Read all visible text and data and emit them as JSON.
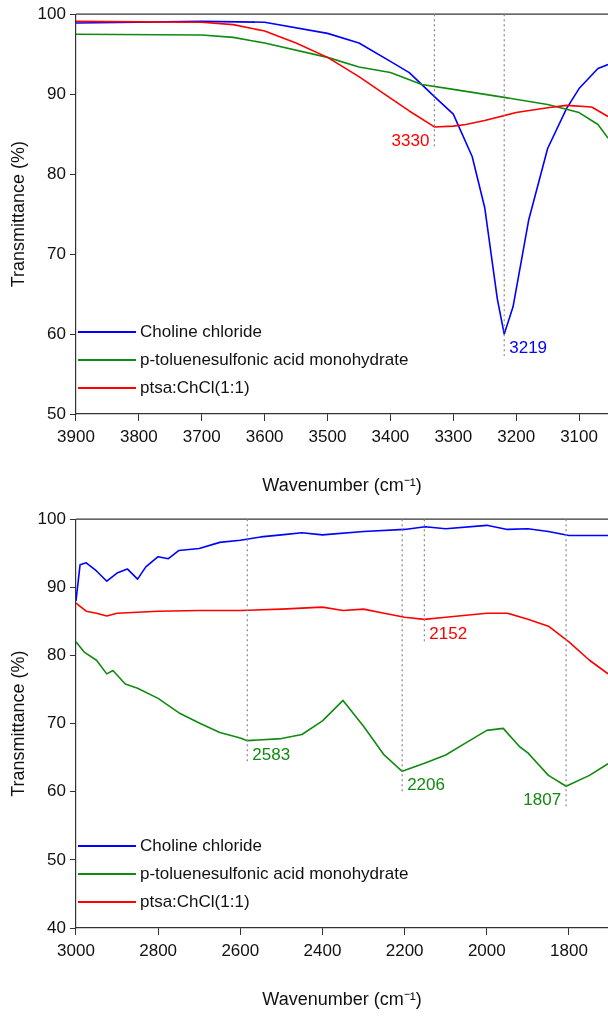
{
  "chart_data": [
    {
      "type": "line",
      "xlabel": "Wavenumber (cm⁻¹)",
      "ylabel": "Transmittance (%)",
      "xlim": [
        3900,
        3054
      ],
      "xticks": [
        3900,
        3800,
        3700,
        3600,
        3500,
        3400,
        3300,
        3200,
        3100
      ],
      "ylim": [
        50,
        100
      ],
      "yticks": [
        50,
        60,
        70,
        80,
        90,
        100
      ],
      "grid": false,
      "legend": "bottom left",
      "marker": "none",
      "line_style": "solid",
      "series": [
        {
          "name": "Choline chloride",
          "color": "#0000ff",
          "x": [
            3900,
            3700,
            3600,
            3500,
            3450,
            3400,
            3370,
            3330,
            3300,
            3270,
            3250,
            3230,
            3219,
            3205,
            3180,
            3150,
            3120,
            3100,
            3070,
            3054
          ],
          "values": [
            98.9,
            99.1,
            99.0,
            97.6,
            96.4,
            94.1,
            92.7,
            89.7,
            87.5,
            82.2,
            75.8,
            64.4,
            60.0,
            63.4,
            74.3,
            83.2,
            88.2,
            90.7,
            93.2,
            93.7
          ]
        },
        {
          "name": "p-toluenesulfonic acid monohydrate",
          "color": "#108a10",
          "x": [
            3900,
            3700,
            3650,
            3600,
            3500,
            3450,
            3400,
            3350,
            3300,
            3219,
            3150,
            3100,
            3070,
            3054
          ],
          "values": [
            97.5,
            97.4,
            97.1,
            96.4,
            94.6,
            93.4,
            92.7,
            91.2,
            90.6,
            89.6,
            88.7,
            87.7,
            86.2,
            84.5
          ]
        },
        {
          "name": "ptsa:ChCl(1:1)",
          "color": "#ff0000",
          "x": [
            3900,
            3700,
            3650,
            3600,
            3550,
            3500,
            3450,
            3400,
            3370,
            3330,
            3300,
            3280,
            3250,
            3200,
            3150,
            3120,
            3080,
            3054
          ],
          "values": [
            99.1,
            99.0,
            98.7,
            97.9,
            96.4,
            94.6,
            92.2,
            89.5,
            87.9,
            85.9,
            86.0,
            86.2,
            86.7,
            87.7,
            88.3,
            88.6,
            88.4,
            87.2
          ]
        }
      ],
      "ref_lines": [
        {
          "axis": "x",
          "value": 3330,
          "label": "3330",
          "color": "#888888",
          "line_style": "dotted"
        },
        {
          "axis": "x",
          "value": 3219,
          "label": "3219",
          "color": "#888888",
          "line_style": "dotted"
        }
      ]
    },
    {
      "type": "line",
      "xlabel": "Wavenumber (cm⁻¹)",
      "ylabel": "Transmittance (%)",
      "xlim": [
        3000,
        1705
      ],
      "xticks": [
        3000,
        2800,
        2600,
        2400,
        2200,
        2000,
        1800
      ],
      "ylim": [
        40,
        100
      ],
      "yticks": [
        40,
        50,
        60,
        70,
        80,
        90,
        100
      ],
      "grid": false,
      "legend": "bottom left",
      "marker": "none",
      "line_style": "solid",
      "series": [
        {
          "name": "Choline chloride",
          "color": "#0000ff",
          "x": [
            3000,
            2990,
            2975,
            2950,
            2925,
            2900,
            2875,
            2850,
            2830,
            2800,
            2775,
            2750,
            2700,
            2650,
            2600,
            2550,
            2500,
            2450,
            2400,
            2300,
            2200,
            2150,
            2100,
            2000,
            1950,
            1900,
            1850,
            1800,
            1750,
            1705
          ],
          "values": [
            88,
            93.3,
            93.6,
            92.4,
            90.9,
            92.1,
            92.7,
            91.2,
            93.0,
            94.5,
            94.2,
            95.4,
            95.7,
            96.6,
            96.9,
            97.4,
            97.7,
            98.0,
            97.7,
            98.2,
            98.5,
            98.9,
            98.6,
            99.1,
            98.5,
            98.6,
            98.2,
            97.6,
            97.6,
            97.6
          ]
        },
        {
          "name": "p-toluenesulfonic acid monohydrate",
          "color": "#108a10",
          "x": [
            3000,
            2980,
            2950,
            2925,
            2910,
            2880,
            2850,
            2800,
            2750,
            2700,
            2650,
            2600,
            2583,
            2500,
            2450,
            2400,
            2350,
            2300,
            2250,
            2206,
            2150,
            2100,
            2050,
            2000,
            1960,
            1920,
            1900,
            1850,
            1807,
            1750,
            1705
          ],
          "values": [
            82.0,
            80.5,
            79.3,
            77.3,
            77.8,
            75.8,
            75.2,
            73.7,
            71.6,
            70.1,
            68.7,
            67.9,
            67.5,
            67.8,
            68.4,
            70.4,
            73.4,
            69.6,
            65.4,
            63.0,
            64.2,
            65.4,
            67.2,
            69.0,
            69.3,
            66.6,
            65.7,
            62.4,
            60.8,
            62.4,
            64.1
          ]
        },
        {
          "name": "ptsa:ChCl(1:1)",
          "color": "#ff0000",
          "x": [
            3000,
            2975,
            2950,
            2925,
            2900,
            2800,
            2700,
            2600,
            2500,
            2400,
            2350,
            2300,
            2250,
            2200,
            2152,
            2100,
            2000,
            1950,
            1900,
            1850,
            1800,
            1750,
            1705
          ],
          "values": [
            87.7,
            86.5,
            86.2,
            85.8,
            86.2,
            86.5,
            86.6,
            86.6,
            86.8,
            87.1,
            86.6,
            86.8,
            86.2,
            85.6,
            85.3,
            85.6,
            86.2,
            86.2,
            85.3,
            84.3,
            82.0,
            79.3,
            77.3
          ]
        }
      ],
      "ref_lines": [
        {
          "axis": "x",
          "value": 2583,
          "label": "2583",
          "color": "#888888",
          "line_style": "dotted"
        },
        {
          "axis": "x",
          "value": 2206,
          "label": "2206",
          "color": "#888888",
          "line_style": "dotted"
        },
        {
          "axis": "x",
          "value": 2152,
          "label": "2152",
          "color": "#888888",
          "line_style": "dotted"
        },
        {
          "axis": "x",
          "value": 1807,
          "label": "1807",
          "color": "#888888",
          "line_style": "dotted"
        }
      ]
    }
  ]
}
